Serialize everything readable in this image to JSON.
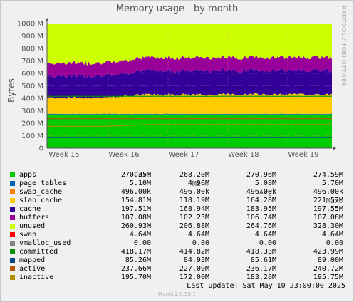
{
  "chart_data": {
    "type": "area",
    "title": "Memory usage - by month",
    "ylabel": "Bytes",
    "yticks": [
      "0",
      "100 M",
      "200 M",
      "300 M",
      "400 M",
      "500 M",
      "600 M",
      "700 M",
      "800 M",
      "900 M",
      "1000 M"
    ],
    "ylim": [
      0,
      1000
    ],
    "y_unit": "M",
    "xticks": [
      "Week 15",
      "Week 16",
      "Week 17",
      "Week 18",
      "Week 19"
    ],
    "grid": true,
    "stacked": [
      "apps",
      "page_tables",
      "swap_cache",
      "slab_cache",
      "cache",
      "buffers",
      "unused",
      "swap"
    ],
    "lines": [
      "committed",
      "mapped",
      "active",
      "inactive"
    ],
    "series": [
      {
        "name": "apps",
        "color": "#00cc00",
        "cur": "270.35M",
        "min": "268.20M",
        "avg": "270.96M",
        "max": "274.59M",
        "value": 270.35
      },
      {
        "name": "page_tables",
        "color": "#0066b3",
        "cur": "5.10M",
        "min": "4.96M",
        "avg": "5.08M",
        "max": "5.70M",
        "value": 5.1
      },
      {
        "name": "swap_cache",
        "color": "#ff8000",
        "cur": "496.00k",
        "min": "496.00k",
        "avg": "496.00k",
        "max": "496.00k",
        "value": 0.496
      },
      {
        "name": "slab_cache",
        "color": "#ffcc00",
        "cur": "154.81M",
        "min": "118.19M",
        "avg": "164.28M",
        "max": "221.57M",
        "value": 154.81
      },
      {
        "name": "cache",
        "color": "#330099",
        "cur": "197.51M",
        "min": "168.94M",
        "avg": "183.95M",
        "max": "197.55M",
        "value": 197.51
      },
      {
        "name": "buffers",
        "color": "#990099",
        "cur": "107.08M",
        "min": "102.23M",
        "avg": "106.74M",
        "max": "107.08M",
        "value": 107.08
      },
      {
        "name": "unused",
        "color": "#ccff00",
        "cur": "260.93M",
        "min": "206.88M",
        "avg": "264.76M",
        "max": "328.30M",
        "value": 260.93
      },
      {
        "name": "swap",
        "color": "#ff0000",
        "cur": "4.64M",
        "min": "4.64M",
        "avg": "4.64M",
        "max": "4.64M",
        "value": 4.64
      },
      {
        "name": "vmalloc_used",
        "color": "#808080",
        "cur": "0.00",
        "min": "0.00",
        "avg": "0.00",
        "max": "0.00",
        "value": 0
      },
      {
        "name": "committed",
        "color": "#008f00",
        "cur": "418.17M",
        "min": "414.82M",
        "avg": "418.33M",
        "max": "423.99M",
        "value": 418.17
      },
      {
        "name": "mapped",
        "color": "#00487d",
        "cur": "85.26M",
        "min": "84.93M",
        "avg": "85.61M",
        "max": "89.00M",
        "value": 85.26
      },
      {
        "name": "active",
        "color": "#b35a00",
        "cur": "237.66M",
        "min": "227.09M",
        "avg": "236.17M",
        "max": "240.72M",
        "value": 237.66
      },
      {
        "name": "inactive",
        "color": "#b38f00",
        "cur": "195.70M",
        "min": "172.00M",
        "avg": "183.28M",
        "max": "195.75M",
        "value": 195.7
      }
    ]
  },
  "legend_header": {
    "cur": "Cur:",
    "min": "Min:",
    "avg": "Avg:",
    "max": "Max:"
  },
  "last_update": "Last update:  Sat May 10 23:00:00 2025",
  "watermark": "RRDTOOL / TOBI OETIKER",
  "footer": "Munin 2.0.33-1"
}
